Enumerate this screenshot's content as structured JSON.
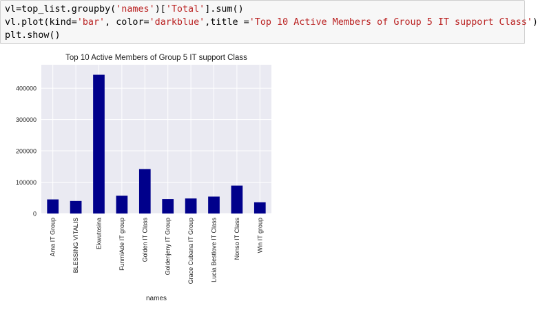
{
  "code_cell": {
    "lines": [
      {
        "segments": [
          {
            "t": "vl=top_list.groupby("
          },
          {
            "t": "'names'",
            "s": true
          },
          {
            "t": ")["
          },
          {
            "t": "'Total'",
            "s": true
          },
          {
            "t": "].sum()"
          }
        ]
      },
      {
        "segments": [
          {
            "t": "vl.plot(kind="
          },
          {
            "t": "'bar'",
            "s": true
          },
          {
            "t": ", color="
          },
          {
            "t": "'darkblue'",
            "s": true
          },
          {
            "t": ",title ="
          },
          {
            "t": "'Top 10 Active Members of Group 5 IT support Class'",
            "s": true
          },
          {
            "t": ")"
          }
        ]
      },
      {
        "segments": [
          {
            "t": "plt.show()"
          }
        ]
      }
    ]
  },
  "chart_data": {
    "type": "bar",
    "title": "Top 10 Active Members of Group 5 IT support Class",
    "xlabel": "names",
    "ylabel": "",
    "categories": [
      "Ama IT Group",
      "BLESSING VITALIS",
      "Ekwutosina",
      "FunmiAde IT group",
      "Golden IT Class",
      "Goldenjeny IT Group",
      "Grace Cubana IT Group",
      "Lucia Bestlove IT Class",
      "Nonso IT Class",
      "Win IT group"
    ],
    "values": [
      45000,
      40000,
      443000,
      57000,
      142000,
      46000,
      48000,
      54000,
      89000,
      36000
    ],
    "ylim": [
      0,
      475000
    ],
    "yticks": [
      0,
      100000,
      200000,
      300000,
      400000
    ],
    "ytick_labels": [
      "0",
      "100000",
      "200000",
      "300000",
      "400000"
    ],
    "bar_color": "#00008b",
    "plot_background": "#eaeaf2",
    "grid_color": "#ffffff",
    "grid": true
  }
}
